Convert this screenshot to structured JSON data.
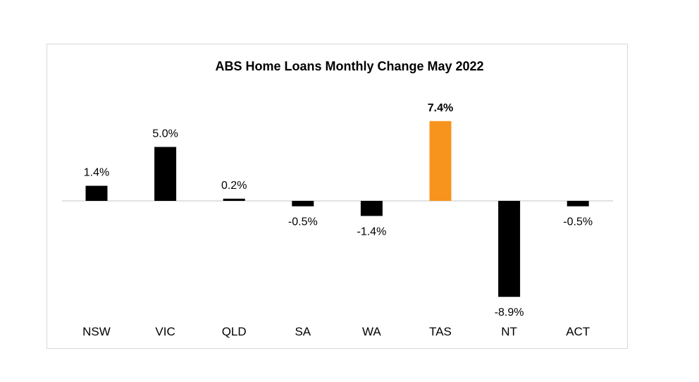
{
  "chart_data": {
    "type": "bar",
    "title": "ABS Home Loans Monthly Change May 2022",
    "categories": [
      "NSW",
      "VIC",
      "QLD",
      "SA",
      "WA",
      "TAS",
      "NT",
      "ACT"
    ],
    "values": [
      1.4,
      5.0,
      0.2,
      -0.5,
      -1.4,
      7.4,
      -8.9,
      -0.5
    ],
    "data_labels": [
      "1.4%",
      "5.0%",
      "0.2%",
      "-0.5%",
      "-1.4%",
      "7.4%",
      "-8.9%",
      "-0.5%"
    ],
    "highlight_index": 5,
    "colors": {
      "default_bar": "#000000",
      "highlight_bar": "#f7941d",
      "axis_line": "#d9d9d9",
      "border": "#d9d9d9"
    },
    "xlabel": "",
    "ylabel": "",
    "grid": false,
    "legend": "none"
  }
}
